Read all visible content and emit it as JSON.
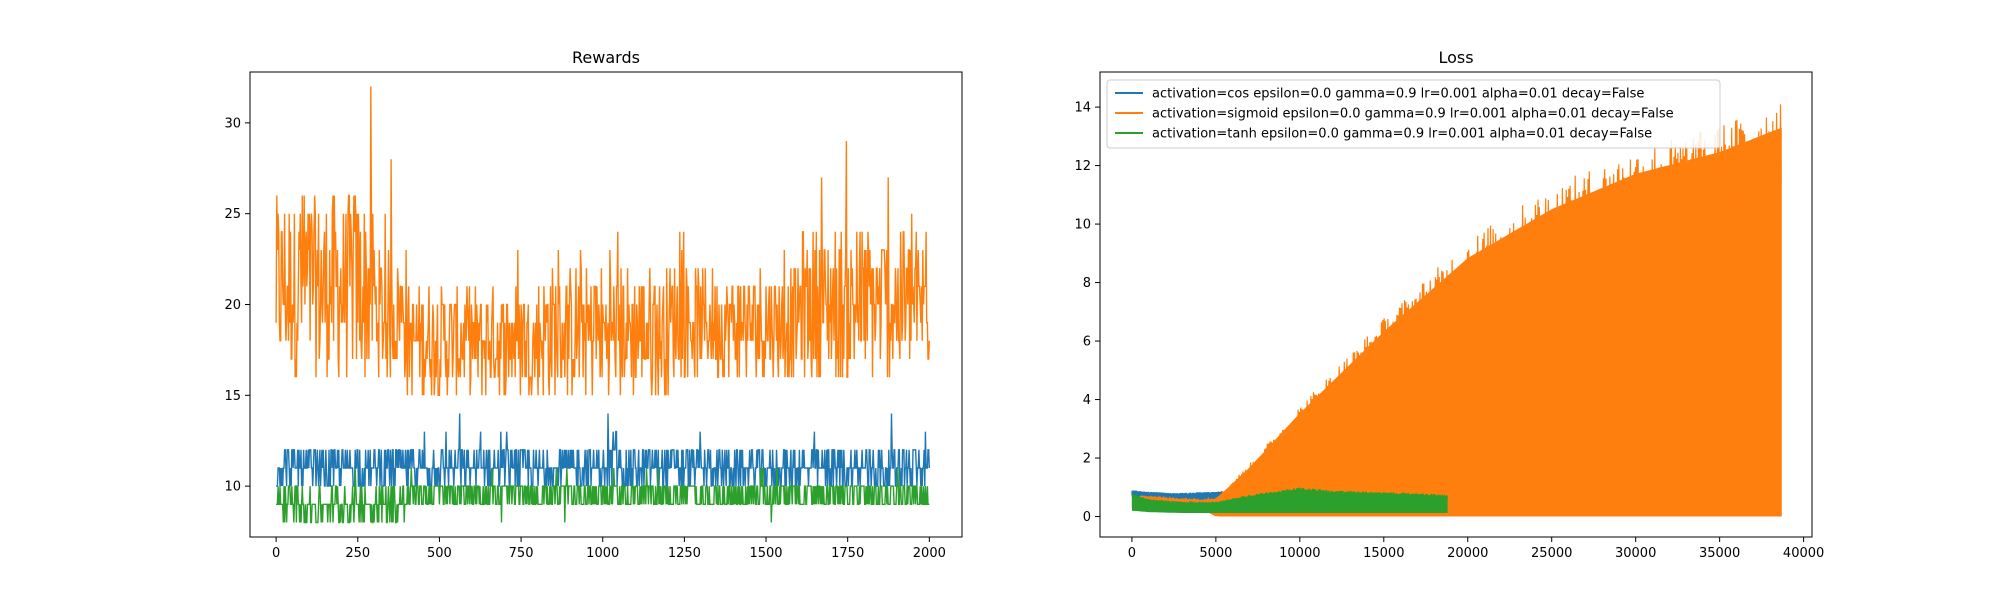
{
  "chart_data": [
    {
      "type": "line",
      "title": "Rewards",
      "xlim": [
        -80,
        2100
      ],
      "ylim": [
        7.2,
        32.8
      ],
      "xticks": [
        0,
        250,
        500,
        750,
        1000,
        1250,
        1500,
        1750,
        2000
      ],
      "yticks": [
        10,
        15,
        20,
        25,
        30
      ],
      "grid": false,
      "series": [
        {
          "color": "#ff7f0e",
          "x_range": [
            0,
            2000
          ],
          "segments": [
            {
              "x": [
                0,
                300
              ],
              "low": 16,
              "high": 26,
              "spike_high": 32,
              "spike_low": 15
            },
            {
              "x": [
                300,
                400
              ],
              "low": 16,
              "high": 23,
              "spike_high": 30,
              "spike_low": 15
            },
            {
              "x": [
                400,
                800
              ],
              "low": 15,
              "high": 21,
              "spike_high": 24,
              "spike_low": 13
            },
            {
              "x": [
                800,
                1200
              ],
              "low": 15,
              "high": 22,
              "spike_high": 25,
              "spike_low": 14
            },
            {
              "x": [
                1200,
                1600
              ],
              "low": 16,
              "high": 22,
              "spike_high": 26,
              "spike_low": 14
            },
            {
              "x": [
                1600,
                2000
              ],
              "low": 16,
              "high": 24,
              "spike_high": 29,
              "spike_low": 15
            }
          ]
        },
        {
          "color": "#1f77b4",
          "x_range": [
            0,
            2000
          ],
          "segments": [
            {
              "x": [
                0,
                380
              ],
              "low": 10,
              "high": 12,
              "spike_high": 12,
              "spike_low": 10
            },
            {
              "x": [
                380,
                2000
              ],
              "low": 10,
              "high": 12,
              "spike_high": 14,
              "spike_low": 10
            }
          ]
        },
        {
          "color": "#2ca02c",
          "x_range": [
            0,
            2000
          ],
          "segments": [
            {
              "x": [
                0,
                400
              ],
              "low": 8,
              "high": 10,
              "spike_high": 11,
              "spike_low": 8
            },
            {
              "x": [
                400,
                1150
              ],
              "low": 9,
              "high": 10,
              "spike_high": 11,
              "spike_low": 8
            },
            {
              "x": [
                1150,
                2000
              ],
              "low": 9,
              "high": 10,
              "spike_high": 11,
              "spike_low": 8
            }
          ]
        }
      ]
    },
    {
      "type": "line",
      "title": "Loss",
      "xlim": [
        -1900,
        40500
      ],
      "ylim": [
        -0.7,
        15.2
      ],
      "xticks": [
        0,
        5000,
        10000,
        15000,
        20000,
        25000,
        30000,
        35000,
        40000
      ],
      "yticks": [
        0,
        2,
        4,
        6,
        8,
        10,
        12,
        14
      ],
      "grid": false,
      "legend": {
        "location": "upper left",
        "entries": [
          {
            "label": "activation=cos epsilon=0.0 gamma=0.9 lr=0.001 alpha=0.01 decay=False",
            "color": "#1f77b4"
          },
          {
            "label": "activation=sigmoid epsilon=0.0 gamma=0.9 lr=0.001 alpha=0.01 decay=False",
            "color": "#ff7f0e"
          },
          {
            "label": "activation=tanh epsilon=0.0 gamma=0.9 lr=0.001 alpha=0.01 decay=False",
            "color": "#2ca02c"
          }
        ]
      },
      "series": [
        {
          "name": "activation=cos epsilon=0.0 gamma=0.9 lr=0.001 alpha=0.01 decay=False",
          "color": "#1f77b4",
          "envelope_x": [
            0,
            1000,
            2500,
            5000,
            6000
          ],
          "envelope_top": [
            0.9,
            0.85,
            0.8,
            0.85,
            0.9
          ],
          "envelope_bottom": [
            0.3,
            0.3,
            0.35,
            0.4,
            0.45
          ]
        },
        {
          "name": "activation=sigmoid epsilon=0.0 gamma=0.9 lr=0.001 alpha=0.01 decay=False",
          "color": "#ff7f0e",
          "envelope_x": [
            500,
            2000,
            4000,
            5000,
            7000,
            10000,
            15000,
            20000,
            25000,
            30000,
            35000,
            38700
          ],
          "envelope_top": [
            0.75,
            0.65,
            0.6,
            0.65,
            1.8,
            3.8,
            6.8,
            9.5,
            11.3,
            12.6,
            13.4,
            14.3
          ],
          "envelope_bottom": [
            0.35,
            0.3,
            0.3,
            0.0,
            0,
            0,
            0,
            0,
            0,
            0,
            0,
            0
          ]
        },
        {
          "name": "activation=tanh epsilon=0.0 gamma=0.9 lr=0.001 alpha=0.01 decay=False",
          "color": "#2ca02c",
          "envelope_x": [
            0,
            1000,
            3000,
            5000,
            7000,
            10000,
            12000,
            15000,
            18800
          ],
          "envelope_top": [
            0.8,
            0.6,
            0.5,
            0.5,
            0.75,
            1.0,
            0.9,
            0.85,
            0.75
          ],
          "envelope_bottom": [
            0.2,
            0.15,
            0.12,
            0.12,
            0.12,
            0.12,
            0.12,
            0.12,
            0.12
          ]
        }
      ]
    }
  ]
}
